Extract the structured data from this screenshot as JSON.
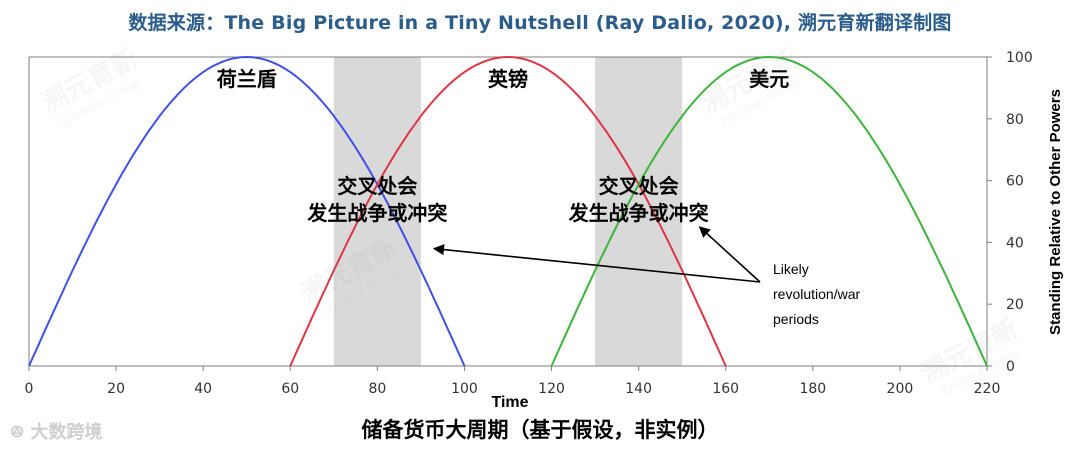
{
  "source_title": "数据来源：The Big Picture in a Tiny Nutshell (Ray Dalio, 2020), 溯元育新翻译制图",
  "bottom_caption": "储备货币大周期（基于假设，非实例）",
  "brand_logo": "大数跨境",
  "watermark": {
    "cn": "溯元育新",
    "en": "Envolve Group"
  },
  "colors": {
    "netherlands": "#3f51e6",
    "britain": "#e03545",
    "usa": "#3cb43c",
    "band": "#d9d9d9"
  },
  "chart_data": {
    "type": "line",
    "xlabel": "Time",
    "ylabel": "Standing Relative to Other Powers",
    "xlim": [
      0,
      220
    ],
    "ylim": [
      0,
      100
    ],
    "x_ticks": [
      0,
      20,
      40,
      60,
      80,
      100,
      120,
      140,
      160,
      180,
      200,
      220
    ],
    "y_ticks": [
      0,
      20,
      40,
      60,
      80,
      100
    ],
    "y_axis_side": "right",
    "series": [
      {
        "name": "荷兰盾",
        "color_key": "netherlands",
        "start": 0,
        "peak": 50,
        "end": 100,
        "peak_value": 100
      },
      {
        "name": "英镑",
        "color_key": "britain",
        "start": 60,
        "peak": 110,
        "end": 160,
        "peak_value": 100
      },
      {
        "name": "美元",
        "color_key": "usa",
        "start": 120,
        "peak": 170,
        "end": 220,
        "peak_value": 100
      }
    ],
    "bands": [
      {
        "from": 70,
        "to": 90,
        "label_lines": [
          "交叉处会",
          "发生战争或冲突"
        ]
      },
      {
        "from": 130,
        "to": 150,
        "label_lines": [
          "交叉处会",
          "发生战争或冲突"
        ]
      }
    ],
    "annotation": {
      "lines": [
        "Likely",
        "revolution/war",
        "periods"
      ],
      "arrows_to": [
        [
          93,
          38
        ],
        [
          154,
          45
        ]
      ]
    }
  }
}
